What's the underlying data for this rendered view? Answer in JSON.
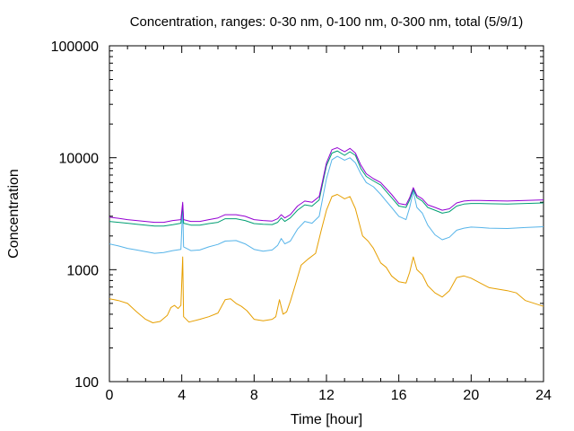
{
  "chart_data": {
    "type": "line",
    "title": "Concentration, ranges: 0-30 nm, 0-100 nm, 0-300 nm, total (5/9/1)",
    "xlabel": "Time [hour]",
    "ylabel": "Concentration",
    "xlim": [
      0,
      24
    ],
    "ylim": [
      100,
      100000
    ],
    "yscale": "log",
    "grid": false,
    "legend": "none",
    "x_ticks": [
      0,
      4,
      8,
      12,
      16,
      20,
      24
    ],
    "x_tick_labels": [
      "0",
      "4",
      "8",
      "12",
      "16",
      "20",
      "24"
    ],
    "y_ticks": [
      100,
      1000,
      10000,
      100000
    ],
    "y_tick_labels": [
      "100",
      "1000",
      "10000",
      "100000"
    ],
    "series": [
      {
        "color": "#e69f00",
        "points": [
          [
            0,
            550
          ],
          [
            0.5,
            530
          ],
          [
            1,
            500
          ],
          [
            1.5,
            420
          ],
          [
            2,
            360
          ],
          [
            2.4,
            335
          ],
          [
            2.8,
            345
          ],
          [
            3.2,
            390
          ],
          [
            3.4,
            460
          ],
          [
            3.6,
            480
          ],
          [
            3.8,
            450
          ],
          [
            3.95,
            480
          ],
          [
            4.05,
            1300
          ],
          [
            4.1,
            380
          ],
          [
            4.4,
            340
          ],
          [
            5,
            360
          ],
          [
            5.5,
            380
          ],
          [
            6,
            410
          ],
          [
            6.4,
            540
          ],
          [
            6.7,
            550
          ],
          [
            7,
            500
          ],
          [
            7.3,
            470
          ],
          [
            7.6,
            430
          ],
          [
            8,
            360
          ],
          [
            8.5,
            350
          ],
          [
            9,
            360
          ],
          [
            9.2,
            380
          ],
          [
            9.4,
            540
          ],
          [
            9.6,
            400
          ],
          [
            9.8,
            420
          ],
          [
            10,
            520
          ],
          [
            10.3,
            750
          ],
          [
            10.6,
            1100
          ],
          [
            11,
            1250
          ],
          [
            11.4,
            1400
          ],
          [
            11.7,
            2200
          ],
          [
            12,
            3400
          ],
          [
            12.3,
            4500
          ],
          [
            12.6,
            4700
          ],
          [
            13,
            4300
          ],
          [
            13.3,
            4500
          ],
          [
            13.6,
            3500
          ],
          [
            14,
            2000
          ],
          [
            14.3,
            1800
          ],
          [
            14.6,
            1550
          ],
          [
            15,
            1150
          ],
          [
            15.3,
            1050
          ],
          [
            15.6,
            880
          ],
          [
            16,
            780
          ],
          [
            16.4,
            760
          ],
          [
            16.6,
            950
          ],
          [
            16.8,
            1300
          ],
          [
            17,
            1000
          ],
          [
            17.3,
            900
          ],
          [
            17.6,
            720
          ],
          [
            18,
            620
          ],
          [
            18.4,
            570
          ],
          [
            18.8,
            650
          ],
          [
            19.2,
            850
          ],
          [
            19.6,
            880
          ],
          [
            20,
            840
          ],
          [
            20.5,
            760
          ],
          [
            21,
            690
          ],
          [
            22,
            650
          ],
          [
            22.5,
            620
          ],
          [
            23,
            530
          ],
          [
            24,
            470
          ]
        ]
      },
      {
        "color": "#56b4e9",
        "points": [
          [
            0,
            1700
          ],
          [
            0.5,
            1630
          ],
          [
            1,
            1550
          ],
          [
            1.5,
            1500
          ],
          [
            2,
            1450
          ],
          [
            2.5,
            1400
          ],
          [
            3,
            1420
          ],
          [
            3.5,
            1480
          ],
          [
            3.95,
            1520
          ],
          [
            4.05,
            3600
          ],
          [
            4.1,
            1600
          ],
          [
            4.5,
            1480
          ],
          [
            5,
            1500
          ],
          [
            5.5,
            1600
          ],
          [
            6,
            1680
          ],
          [
            6.4,
            1800
          ],
          [
            7,
            1820
          ],
          [
            7.5,
            1700
          ],
          [
            8,
            1520
          ],
          [
            8.5,
            1460
          ],
          [
            9,
            1500
          ],
          [
            9.3,
            1650
          ],
          [
            9.5,
            1900
          ],
          [
            9.7,
            1700
          ],
          [
            10,
            1800
          ],
          [
            10.4,
            2300
          ],
          [
            10.8,
            2700
          ],
          [
            11.2,
            2600
          ],
          [
            11.6,
            3000
          ],
          [
            12,
            6500
          ],
          [
            12.3,
            9600
          ],
          [
            12.6,
            10300
          ],
          [
            13,
            9500
          ],
          [
            13.3,
            10000
          ],
          [
            13.6,
            9000
          ],
          [
            13.9,
            7200
          ],
          [
            14.2,
            6000
          ],
          [
            14.6,
            5500
          ],
          [
            15,
            4700
          ],
          [
            15.3,
            4100
          ],
          [
            15.6,
            3600
          ],
          [
            16,
            3000
          ],
          [
            16.4,
            2800
          ],
          [
            16.6,
            3600
          ],
          [
            16.8,
            5000
          ],
          [
            17,
            3600
          ],
          [
            17.3,
            3200
          ],
          [
            17.6,
            2500
          ],
          [
            18,
            2050
          ],
          [
            18.4,
            1850
          ],
          [
            18.8,
            1950
          ],
          [
            19.2,
            2250
          ],
          [
            19.6,
            2350
          ],
          [
            20,
            2400
          ],
          [
            20.5,
            2380
          ],
          [
            21,
            2350
          ],
          [
            22,
            2330
          ],
          [
            23,
            2380
          ],
          [
            24,
            2420
          ]
        ]
      },
      {
        "color": "#009e73",
        "points": [
          [
            0,
            2700
          ],
          [
            0.5,
            2650
          ],
          [
            1,
            2600
          ],
          [
            1.5,
            2550
          ],
          [
            2,
            2500
          ],
          [
            2.5,
            2450
          ],
          [
            3,
            2450
          ],
          [
            3.5,
            2520
          ],
          [
            3.95,
            2600
          ],
          [
            4.05,
            3800
          ],
          [
            4.1,
            2600
          ],
          [
            4.5,
            2500
          ],
          [
            5,
            2500
          ],
          [
            5.5,
            2580
          ],
          [
            6,
            2650
          ],
          [
            6.4,
            2850
          ],
          [
            7,
            2850
          ],
          [
            7.5,
            2750
          ],
          [
            8,
            2580
          ],
          [
            8.5,
            2550
          ],
          [
            9,
            2530
          ],
          [
            9.3,
            2650
          ],
          [
            9.5,
            2900
          ],
          [
            9.7,
            2700
          ],
          [
            10,
            2900
          ],
          [
            10.4,
            3400
          ],
          [
            10.8,
            3800
          ],
          [
            11.2,
            3700
          ],
          [
            11.6,
            4200
          ],
          [
            12,
            8500
          ],
          [
            12.3,
            11000
          ],
          [
            12.6,
            11500
          ],
          [
            13,
            10500
          ],
          [
            13.3,
            11300
          ],
          [
            13.6,
            10500
          ],
          [
            13.9,
            8000
          ],
          [
            14.2,
            6800
          ],
          [
            14.6,
            6200
          ],
          [
            15,
            5700
          ],
          [
            15.3,
            5000
          ],
          [
            15.6,
            4400
          ],
          [
            16,
            3700
          ],
          [
            16.4,
            3600
          ],
          [
            16.6,
            4200
          ],
          [
            16.8,
            5200
          ],
          [
            17,
            4400
          ],
          [
            17.3,
            4100
          ],
          [
            17.6,
            3600
          ],
          [
            18,
            3400
          ],
          [
            18.4,
            3200
          ],
          [
            18.8,
            3300
          ],
          [
            19.2,
            3700
          ],
          [
            19.6,
            3850
          ],
          [
            20,
            3900
          ],
          [
            20.5,
            3900
          ],
          [
            21,
            3880
          ],
          [
            22,
            3850
          ],
          [
            23,
            3900
          ],
          [
            24,
            3950
          ]
        ]
      },
      {
        "color": "#9400d3",
        "points": [
          [
            0,
            2950
          ],
          [
            0.5,
            2880
          ],
          [
            1,
            2800
          ],
          [
            1.5,
            2750
          ],
          [
            2,
            2700
          ],
          [
            2.5,
            2650
          ],
          [
            3,
            2650
          ],
          [
            3.5,
            2750
          ],
          [
            3.95,
            2800
          ],
          [
            4.05,
            4000
          ],
          [
            4.1,
            2800
          ],
          [
            4.5,
            2700
          ],
          [
            5,
            2700
          ],
          [
            5.5,
            2800
          ],
          [
            6,
            2900
          ],
          [
            6.4,
            3100
          ],
          [
            7,
            3100
          ],
          [
            7.5,
            3000
          ],
          [
            8,
            2800
          ],
          [
            8.5,
            2750
          ],
          [
            9,
            2720
          ],
          [
            9.3,
            2850
          ],
          [
            9.5,
            3100
          ],
          [
            9.7,
            2900
          ],
          [
            10,
            3100
          ],
          [
            10.4,
            3700
          ],
          [
            10.8,
            4100
          ],
          [
            11.2,
            4000
          ],
          [
            11.6,
            4500
          ],
          [
            12,
            9000
          ],
          [
            12.3,
            11800
          ],
          [
            12.6,
            12300
          ],
          [
            13,
            11300
          ],
          [
            13.3,
            12100
          ],
          [
            13.6,
            11000
          ],
          [
            13.9,
            8600
          ],
          [
            14.2,
            7200
          ],
          [
            14.6,
            6500
          ],
          [
            15,
            6000
          ],
          [
            15.3,
            5300
          ],
          [
            15.6,
            4700
          ],
          [
            16,
            3900
          ],
          [
            16.4,
            3800
          ],
          [
            16.6,
            4400
          ],
          [
            16.8,
            5400
          ],
          [
            17,
            4600
          ],
          [
            17.3,
            4300
          ],
          [
            17.6,
            3800
          ],
          [
            18,
            3600
          ],
          [
            18.4,
            3400
          ],
          [
            18.8,
            3500
          ],
          [
            19.2,
            3950
          ],
          [
            19.6,
            4100
          ],
          [
            20,
            4150
          ],
          [
            20.5,
            4150
          ],
          [
            21,
            4130
          ],
          [
            22,
            4100
          ],
          [
            23,
            4150
          ],
          [
            24,
            4200
          ]
        ]
      }
    ]
  }
}
